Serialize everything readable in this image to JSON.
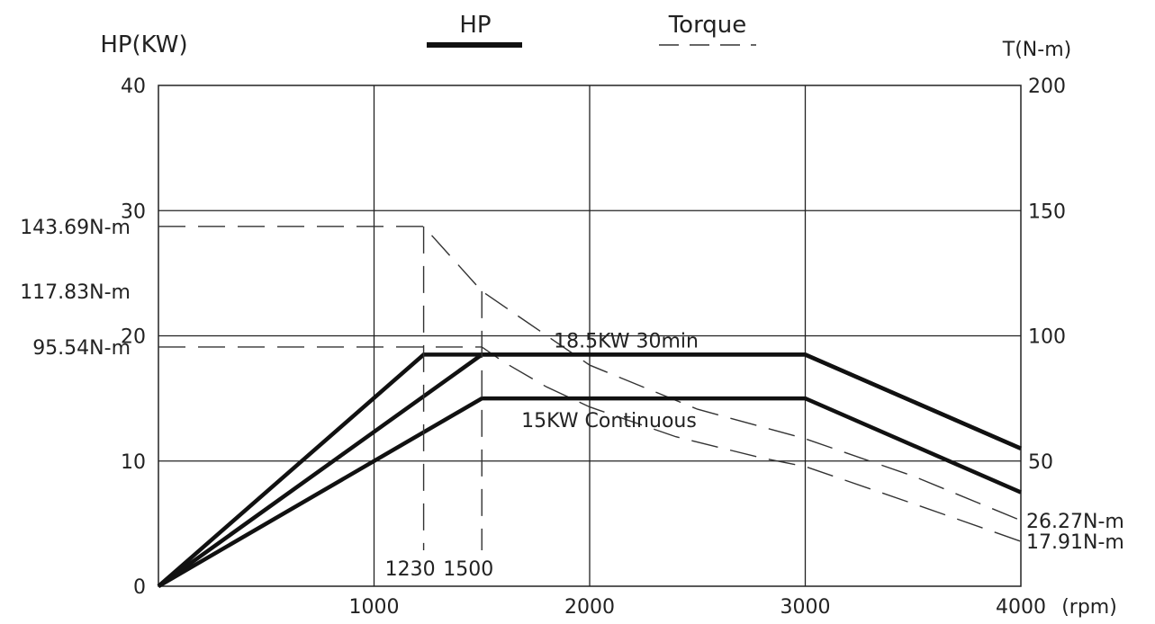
{
  "chart_data": {
    "type": "line",
    "title": "",
    "left_axis": {
      "label": "HP(KW)",
      "ylim": [
        0,
        40
      ],
      "ticks": [
        "0",
        "10",
        "20",
        "30",
        "40"
      ]
    },
    "right_axis": {
      "label": "T(N-m)",
      "ylim": [
        0,
        200
      ],
      "ticks": [
        "50",
        "100",
        "150",
        "200"
      ]
    },
    "x_axis": {
      "label": "(rpm)",
      "xlim": [
        0,
        4000
      ],
      "ticks": [
        "1000",
        "2000",
        "3000",
        "4000"
      ]
    },
    "grid": true,
    "legend": [
      {
        "label": "HP",
        "style": "solid-thick"
      },
      {
        "label": "Torque",
        "style": "dashed"
      }
    ],
    "series": [
      {
        "name": "18.5KW 30min",
        "kind": "power",
        "axis": "left",
        "x": [
          0,
          1230,
          3000,
          4000
        ],
        "y": [
          0,
          18.5,
          18.5,
          11
        ]
      },
      {
        "name": "",
        "kind": "power",
        "axis": "left",
        "x": [
          0,
          1500,
          3000,
          4000
        ],
        "y": [
          0,
          18.5,
          18.5,
          11
        ]
      },
      {
        "name": "15KW Continuous",
        "kind": "power",
        "axis": "left",
        "x": [
          0,
          1500,
          3000,
          4000
        ],
        "y": [
          0,
          15,
          15,
          7.5
        ]
      },
      {
        "name": "",
        "kind": "torque",
        "axis": "right",
        "x": [
          0,
          1230,
          1500,
          2000,
          2500,
          3000,
          3500,
          4000
        ],
        "y": [
          143.69,
          143.69,
          117.83,
          88.3,
          70.7,
          58.9,
          44,
          26.27
        ]
      },
      {
        "name": "",
        "kind": "torque",
        "axis": "right",
        "x": [
          0,
          1500,
          1600,
          1800,
          2000,
          2400,
          2800,
          3000,
          3500,
          4000
        ],
        "y": [
          95.54,
          95.54,
          89.6,
          79.6,
          71.6,
          59.7,
          51.2,
          47.8,
          33,
          17.91
        ]
      }
    ],
    "vertical_markers": [
      {
        "x": 1230,
        "label": "1230",
        "y_top": 143.69
      },
      {
        "x": 1500,
        "label": "1500",
        "y_top": 117.83
      }
    ],
    "torque_labels_left": [
      {
        "value": 143.69,
        "label": "143.69N-m"
      },
      {
        "value": 117.83,
        "label": "117.83N-m"
      },
      {
        "value": 95.54,
        "label": "95.54N-m"
      }
    ],
    "torque_labels_right": [
      {
        "value": 26.27,
        "label": "26.27N-m"
      },
      {
        "value": 17.91,
        "label": "17.91N-m"
      }
    ],
    "annotations": [
      {
        "text": "18.5KW  30min",
        "x": 1800,
        "y": 18.5
      },
      {
        "text": "15KW  Continuous",
        "x": 1650,
        "y": 15
      }
    ]
  }
}
